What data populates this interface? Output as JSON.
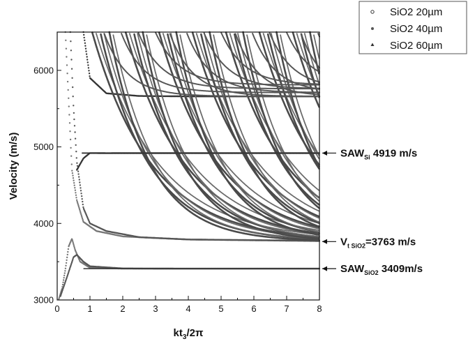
{
  "chart_data": {
    "type": "scatter",
    "xlabel": {
      "main": "kt",
      "sub": "3",
      "tail": "/2π"
    },
    "ylabel": "Velocity (m/s)",
    "xlim": [
      0,
      8
    ],
    "ylim": [
      3000,
      6500
    ],
    "xticks": [
      "0",
      "1",
      "2",
      "3",
      "4",
      "5",
      "6",
      "7",
      "8"
    ],
    "yticks": [
      "3000",
      "4000",
      "5000",
      "6000"
    ],
    "grid": false,
    "legend": {
      "position": "top-right",
      "entries": [
        {
          "name": "SiO2 20µm",
          "marker": "circle"
        },
        {
          "name": "SiO2 40µm",
          "marker": "dot"
        },
        {
          "name": "SiO2 60µm",
          "marker": "triangle"
        }
      ]
    },
    "annotations": [
      {
        "id": "saw-si",
        "main": "SAW",
        "sub": "Si",
        "tail": " 4919 m/s",
        "y": 4919
      },
      {
        "id": "vt-sio2",
        "main": "V",
        "sub": "t SiO2",
        "tail": "=3763 m/s",
        "y": 3763
      },
      {
        "id": "saw-sio2",
        "main": "SAW",
        "sub": "SiO2",
        "tail": " 3409m/s",
        "y": 3409
      }
    ],
    "asymptotes": {
      "saw_sio2": 3409,
      "vt_sio2": 3763,
      "saw_si": 4919,
      "upper": 5660
    },
    "series": [
      {
        "name": "SiO2 20µm",
        "curves": [
          {
            "role": "fundamental",
            "x": [
              0.05,
              0.15,
              0.25,
              0.35,
              0.45,
              0.55,
              0.7,
              1.0,
              2.0,
              4.0,
              8.0
            ],
            "y": [
              3010,
              3150,
              3400,
              3700,
              3800,
              3650,
              3500,
              3420,
              3410,
              3409,
              3409
            ]
          },
          {
            "role": "mode-2",
            "x": [
              0.25,
              0.35,
              0.45,
              0.6,
              0.8,
              1.2,
              2.0,
              4.0,
              8.0
            ],
            "y": [
              6500,
              5600,
              4700,
              4300,
              4020,
              3900,
              3830,
              3790,
              3775
            ]
          }
        ]
      },
      {
        "name": "SiO2 40µm",
        "curves": [
          {
            "role": "fundamental",
            "x": [
              0.1,
              0.3,
              0.5,
              0.6,
              0.8,
              1.0,
              2.0,
              4.0,
              8.0
            ],
            "y": [
              3050,
              3300,
              3560,
              3590,
              3500,
              3440,
              3412,
              3409,
              3409
            ]
          },
          {
            "role": "mode-2",
            "x": [
              0.4,
              0.5,
              0.6,
              0.8,
              1.0,
              1.5,
              2.5,
              4.0,
              8.0
            ],
            "y": [
              6500,
              5500,
              4800,
              4200,
              4000,
              3900,
              3820,
              3790,
              3770
            ]
          }
        ]
      },
      {
        "name": "SiO2 60µm",
        "curves": [
          {
            "role": "saw-si",
            "x": [
              0.6,
              0.8,
              1.0,
              1.5,
              2.5,
              4.0,
              8.0
            ],
            "y": [
              4700,
              4850,
              4920,
              4918,
              4919,
              4919,
              4919
            ]
          },
          {
            "role": "upper",
            "x": [
              0.8,
              1.0,
              1.5,
              2.5,
              4.0,
              8.0
            ],
            "y": [
              6500,
              5900,
              5700,
              5665,
              5660,
              5660
            ]
          }
        ]
      }
    ]
  }
}
